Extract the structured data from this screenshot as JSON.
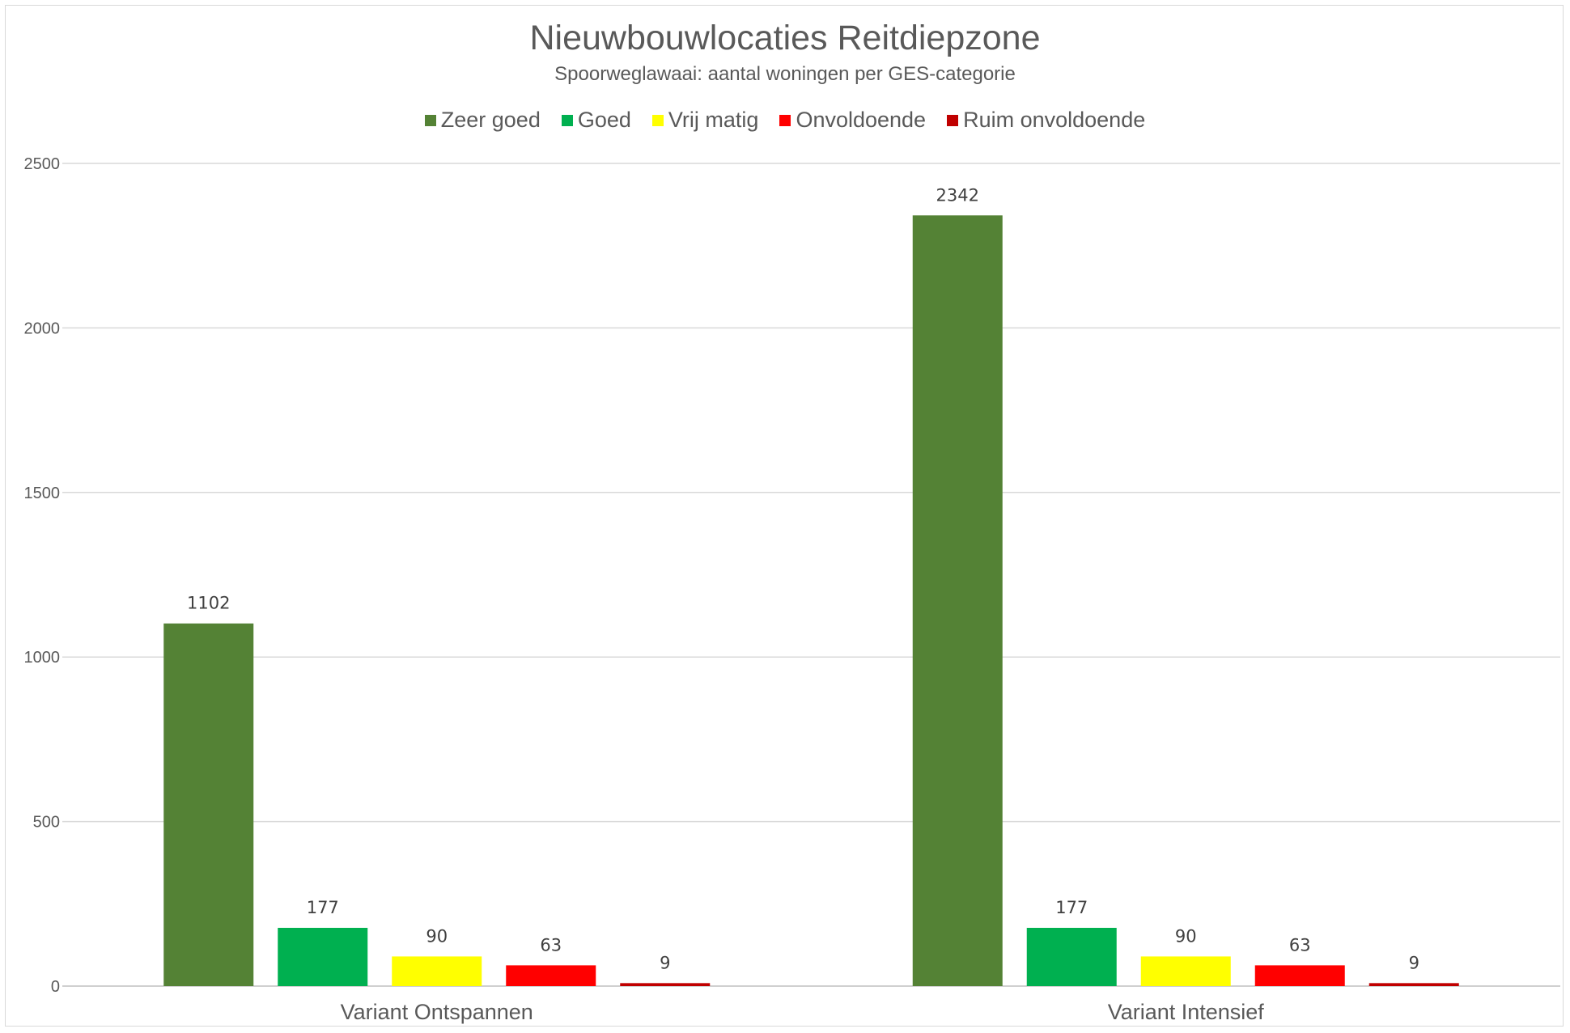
{
  "chart_data": {
    "type": "bar",
    "title": "Nieuwbouwlocaties Reitdiepzone",
    "subtitle": "Spoorweglawaai: aantal woningen per GES-categorie",
    "categories": [
      "Variant Ontspannen",
      "Variant Intensief"
    ],
    "series": [
      {
        "name": "Zeer goed",
        "color": "#548235",
        "values": [
          1102,
          2342
        ]
      },
      {
        "name": "Goed",
        "color": "#00b050",
        "values": [
          177,
          177
        ]
      },
      {
        "name": "Vrij matig",
        "color": "#ffff00",
        "values": [
          90,
          90
        ]
      },
      {
        "name": "Onvoldoende",
        "color": "#ff0000",
        "values": [
          63,
          63
        ]
      },
      {
        "name": "Ruim onvoldoende",
        "color": "#c00000",
        "values": [
          9,
          9
        ]
      }
    ],
    "ylim": [
      0,
      2500
    ],
    "yticks": [
      0,
      500,
      1000,
      1500,
      2000,
      2500
    ],
    "grid": true,
    "legend_position": "top-center",
    "data_labels": true
  }
}
